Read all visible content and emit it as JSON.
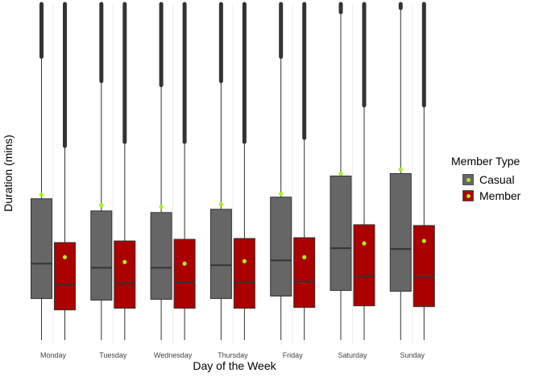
{
  "chart_data": {
    "type": "boxplot",
    "title": "",
    "xlabel": "Day of the Week",
    "ylabel": "Duration (mins)",
    "categories": [
      "Monday",
      "Tuesday",
      "Wednesday",
      "Thursday",
      "Friday",
      "Saturday",
      "Sunday"
    ],
    "grid": "vertical",
    "legend_position": "right",
    "legend": {
      "title": "Member Type",
      "entries": [
        {
          "name": "Casual",
          "fill": "#666666"
        },
        {
          "name": "Member",
          "fill": "#aa0000"
        }
      ]
    },
    "mean_marker_color": "#aaee22",
    "ylim": [
      0,
      42
    ],
    "series": [
      {
        "name": "Casual",
        "fill": "#666666",
        "boxes": [
          {
            "lower": 0.6,
            "q1": 5.7,
            "median": 10.0,
            "q3": 18.0,
            "mean": 18.5,
            "whisker_top": 35.5,
            "outliers_to": 42
          },
          {
            "lower": 0.6,
            "q1": 5.5,
            "median": 9.5,
            "q3": 16.5,
            "mean": 17.2,
            "whisker_top": 32.5,
            "outliers_to": 42
          },
          {
            "lower": 0.6,
            "q1": 5.6,
            "median": 9.5,
            "q3": 16.3,
            "mean": 17.0,
            "whisker_top": 32.0,
            "outliers_to": 42
          },
          {
            "lower": 0.6,
            "q1": 5.7,
            "median": 9.8,
            "q3": 16.7,
            "mean": 17.3,
            "whisker_top": 32.5,
            "outliers_to": 42
          },
          {
            "lower": 0.6,
            "q1": 6.0,
            "median": 10.4,
            "q3": 18.2,
            "mean": 18.6,
            "whisker_top": 35.5,
            "outliers_to": 42
          },
          {
            "lower": 0.6,
            "q1": 6.7,
            "median": 11.9,
            "q3": 20.8,
            "mean": 21.1,
            "whisker_top": 41.0,
            "outliers_to": 42
          },
          {
            "lower": 0.6,
            "q1": 6.6,
            "median": 11.8,
            "q3": 21.1,
            "mean": 21.6,
            "whisker_top": 41.5,
            "outliers_to": 42
          }
        ]
      },
      {
        "name": "Member",
        "fill": "#aa0000",
        "boxes": [
          {
            "lower": 0.6,
            "q1": 4.3,
            "median": 7.4,
            "q3": 12.6,
            "mean": 10.8,
            "whisker_top": 24.5,
            "outliers_to": 42
          },
          {
            "lower": 0.6,
            "q1": 4.5,
            "median": 7.6,
            "q3": 12.8,
            "mean": 10.2,
            "whisker_top": 25.0,
            "outliers_to": 42
          },
          {
            "lower": 0.6,
            "q1": 4.5,
            "median": 7.7,
            "q3": 13.0,
            "mean": 10.0,
            "whisker_top": 25.0,
            "outliers_to": 42
          },
          {
            "lower": 0.6,
            "q1": 4.5,
            "median": 7.7,
            "q3": 13.1,
            "mean": 10.3,
            "whisker_top": 25.0,
            "outliers_to": 42
          },
          {
            "lower": 0.6,
            "q1": 4.6,
            "median": 7.8,
            "q3": 13.2,
            "mean": 10.8,
            "whisker_top": 25.5,
            "outliers_to": 42
          },
          {
            "lower": 0.6,
            "q1": 4.8,
            "median": 8.5,
            "q3": 14.8,
            "mean": 12.5,
            "whisker_top": 29.5,
            "outliers_to": 42
          },
          {
            "lower": 0.6,
            "q1": 4.7,
            "median": 8.3,
            "q3": 14.7,
            "mean": 12.8,
            "whisker_top": 29.5,
            "outliers_to": 42
          }
        ]
      }
    ]
  }
}
